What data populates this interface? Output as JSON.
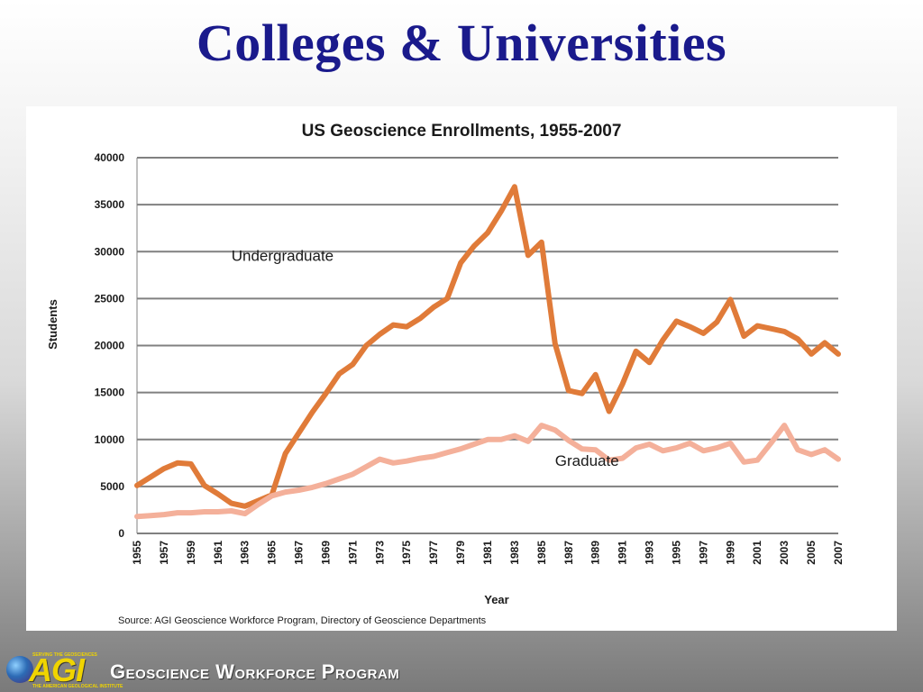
{
  "slide": {
    "title": "Colleges & Universities"
  },
  "footer": {
    "logo_text": "AGI",
    "logo_tagline_top": "SERVING THE GEOSCIENCES",
    "logo_tagline_bottom": "THE AMERICAN GEOLOGICAL INSTITUTE",
    "program_name": "Geoscience Workforce Program"
  },
  "chart_data": {
    "type": "line",
    "title": "US Geoscience Enrollments, 1955-2007",
    "xlabel": "Year",
    "ylabel": "Students",
    "source": "Source: AGI Geoscience Workforce Program, Directory of Geoscience Departments",
    "ylim": [
      0,
      40000
    ],
    "yticks": [
      0,
      5000,
      10000,
      15000,
      20000,
      25000,
      30000,
      35000,
      40000
    ],
    "xticks": [
      "1955",
      "1957",
      "1959",
      "1961",
      "1963",
      "1965",
      "1967",
      "1969",
      "1971",
      "1973",
      "1975",
      "1977",
      "1979",
      "1981",
      "1983",
      "1985",
      "1987",
      "1989",
      "1991",
      "1993",
      "1995",
      "1997",
      "1999",
      "2001",
      "2003",
      "2005",
      "2007"
    ],
    "grid": true,
    "x": [
      1955,
      1956,
      1957,
      1958,
      1959,
      1960,
      1961,
      1962,
      1963,
      1964,
      1965,
      1966,
      1967,
      1968,
      1969,
      1970,
      1971,
      1972,
      1973,
      1974,
      1975,
      1976,
      1977,
      1978,
      1979,
      1980,
      1981,
      1982,
      1983,
      1984,
      1985,
      1986,
      1987,
      1988,
      1989,
      1990,
      1991,
      1992,
      1993,
      1994,
      1995,
      1996,
      1997,
      1998,
      1999,
      2000,
      2001,
      2002,
      2003,
      2004,
      2005,
      2006,
      2007
    ],
    "series": [
      {
        "name": "Undergraduate",
        "color": "#e07b39",
        "values": [
          5100,
          6000,
          6900,
          7500,
          7400,
          5100,
          4200,
          3200,
          2900,
          3500,
          4100,
          8500,
          10700,
          12900,
          14900,
          17000,
          18000,
          20000,
          21200,
          22200,
          22000,
          22900,
          24100,
          25000,
          28800,
          30600,
          32000,
          34300,
          36900,
          29600,
          31000,
          20200,
          15200,
          14900,
          16900,
          13000,
          15900,
          19400,
          18200,
          20600,
          22600,
          22000,
          21300,
          22500,
          24900,
          21000,
          22100,
          21800,
          21500,
          20700,
          19100,
          20300,
          19100
        ],
        "label_position": [
          1962,
          29000
        ]
      },
      {
        "name": "Graduate",
        "color": "#f4b09a",
        "values": [
          1800,
          1900,
          2000,
          2200,
          2200,
          2300,
          2300,
          2400,
          2100,
          3100,
          4000,
          4400,
          4600,
          4900,
          5300,
          5800,
          6300,
          7100,
          7900,
          7500,
          7700,
          8000,
          8200,
          8600,
          9000,
          9500,
          10000,
          10000,
          10400,
          9800,
          11500,
          11000,
          9900,
          9000,
          8900,
          7800,
          8000,
          9100,
          9500,
          8800,
          9100,
          9600,
          8800,
          9100,
          9600,
          7600,
          7800,
          9600,
          11500,
          8900,
          8400,
          8900,
          7900
        ],
        "label_position": [
          1986,
          7200
        ]
      }
    ]
  }
}
